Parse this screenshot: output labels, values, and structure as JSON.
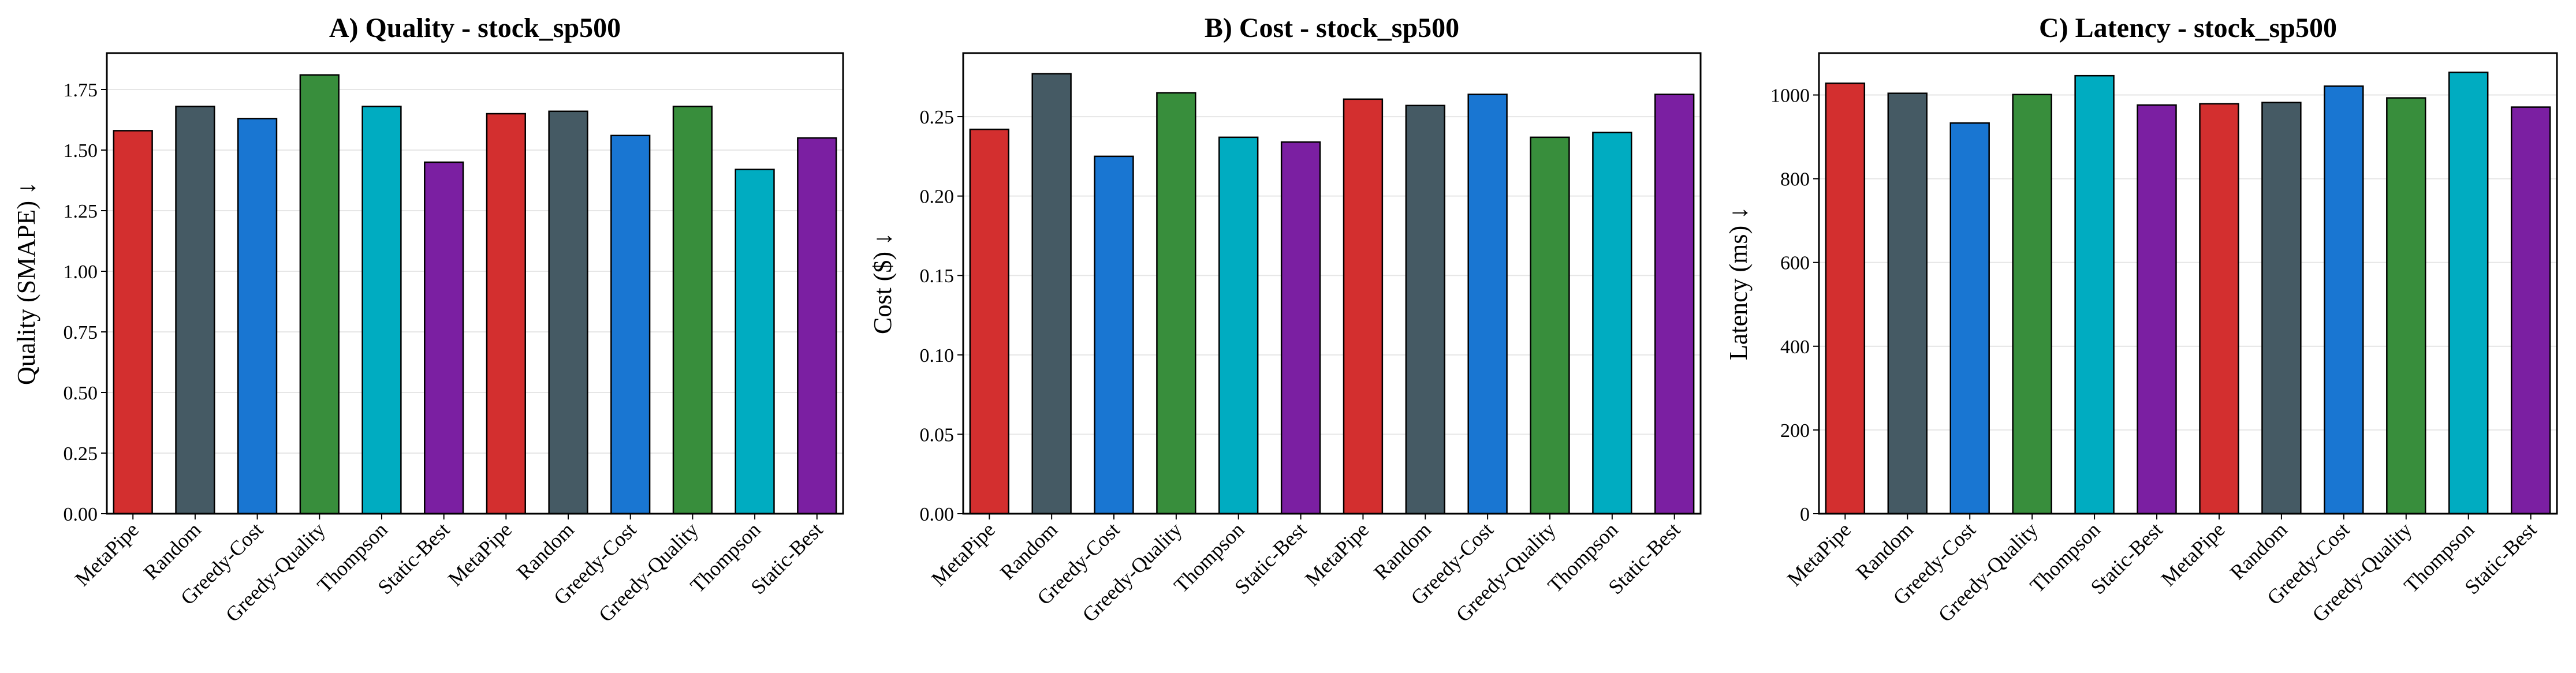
{
  "chart_data": [
    {
      "type": "bar",
      "title": "A) Quality - stock_sp500",
      "xlabel": "",
      "ylabel": "Quality (SMAPE) ↓",
      "ylim": [
        0,
        1.9
      ],
      "yticks": [
        "0.00",
        "0.25",
        "0.50",
        "0.75",
        "1.00",
        "1.25",
        "1.50",
        "1.75"
      ],
      "grid": true,
      "categories": [
        "MetaPipe",
        "Random",
        "Greedy-Cost",
        "Greedy-Quality",
        "Thompson",
        "Static-Best",
        "MetaPipe",
        "Random",
        "Greedy-Cost",
        "Greedy-Quality",
        "Thompson",
        "Static-Best"
      ],
      "values": [
        1.58,
        1.68,
        1.63,
        1.81,
        1.68,
        1.45,
        1.65,
        1.66,
        1.56,
        1.68,
        1.42,
        1.55
      ],
      "colors": [
        "#d32f2f",
        "#455a64",
        "#1976d2",
        "#388e3c",
        "#00acc1",
        "#7b1fa2",
        "#d32f2f",
        "#455a64",
        "#1976d2",
        "#388e3c",
        "#00acc1",
        "#7b1fa2"
      ]
    },
    {
      "type": "bar",
      "title": "B) Cost - stock_sp500",
      "xlabel": "",
      "ylabel": "Cost ($) ↓",
      "ylim": [
        0,
        0.29
      ],
      "yticks": [
        "0.00",
        "0.05",
        "0.10",
        "0.15",
        "0.20",
        "0.25"
      ],
      "grid": true,
      "categories": [
        "MetaPipe",
        "Random",
        "Greedy-Cost",
        "Greedy-Quality",
        "Thompson",
        "Static-Best",
        "MetaPipe",
        "Random",
        "Greedy-Cost",
        "Greedy-Quality",
        "Thompson",
        "Static-Best"
      ],
      "values": [
        0.242,
        0.277,
        0.225,
        0.265,
        0.237,
        0.234,
        0.261,
        0.257,
        0.264,
        0.237,
        0.24,
        0.264
      ],
      "colors": [
        "#d32f2f",
        "#455a64",
        "#1976d2",
        "#388e3c",
        "#00acc1",
        "#7b1fa2",
        "#d32f2f",
        "#455a64",
        "#1976d2",
        "#388e3c",
        "#00acc1",
        "#7b1fa2"
      ]
    },
    {
      "type": "bar",
      "title": "C) Latency - stock_sp500",
      "xlabel": "",
      "ylabel": "Latency (ms) ↓",
      "ylim": [
        0,
        1100
      ],
      "yticks": [
        "0",
        "200",
        "400",
        "600",
        "800",
        "1000"
      ],
      "grid": true,
      "categories": [
        "MetaPipe",
        "Random",
        "Greedy-Cost",
        "Greedy-Quality",
        "Thompson",
        "Static-Best",
        "MetaPipe",
        "Random",
        "Greedy-Cost",
        "Greedy-Quality",
        "Thompson",
        "Static-Best"
      ],
      "values": [
        1028,
        1004,
        933,
        1001,
        1046,
        976,
        979,
        982,
        1021,
        993,
        1054,
        971
      ],
      "colors": [
        "#d32f2f",
        "#455a64",
        "#1976d2",
        "#388e3c",
        "#00acc1",
        "#7b1fa2",
        "#d32f2f",
        "#455a64",
        "#1976d2",
        "#388e3c",
        "#00acc1",
        "#7b1fa2"
      ]
    }
  ]
}
